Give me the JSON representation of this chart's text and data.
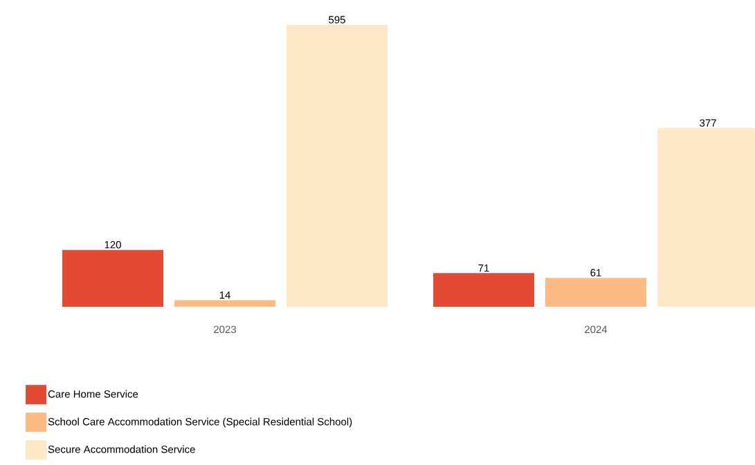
{
  "chart_data": {
    "type": "bar",
    "categories": [
      "2023",
      "2024"
    ],
    "series": [
      {
        "name": "Care Home Service",
        "color": "#e34a33",
        "values": [
          120,
          71
        ]
      },
      {
        "name": "School Care Accommodation Service (Special Residential School)",
        "color": "#fdbb84",
        "values": [
          14,
          61
        ]
      },
      {
        "name": "Secure Accommodation Service",
        "color": "#fee8c8",
        "values": [
          595,
          377
        ]
      }
    ],
    "data_labels": true,
    "legend": "bottom"
  }
}
